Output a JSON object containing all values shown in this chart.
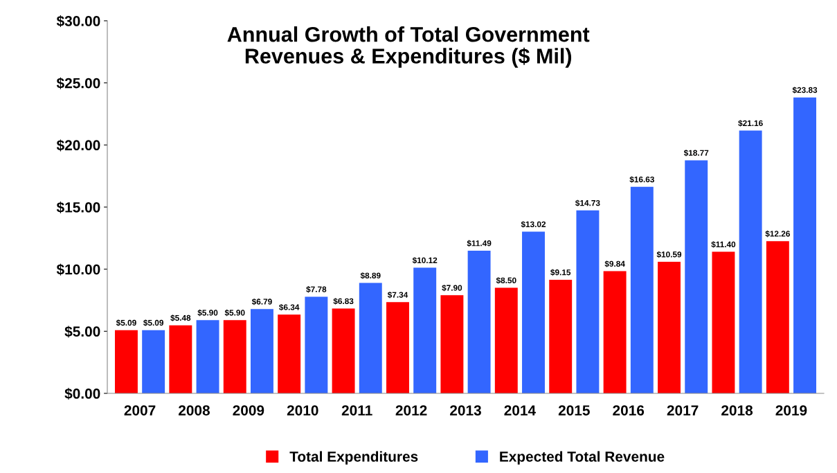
{
  "chart_data": {
    "type": "bar",
    "title": "Annual Growth of Total Government\nRevenues & Expenditures ($ Mil)",
    "categories": [
      "2007",
      "2008",
      "2009",
      "2010",
      "2011",
      "2012",
      "2013",
      "2014",
      "2015",
      "2016",
      "2017",
      "2018",
      "2019"
    ],
    "series": [
      {
        "name": "Total Expenditures",
        "color": "#ff0000",
        "values": [
          5.09,
          5.48,
          5.9,
          6.34,
          6.83,
          7.34,
          7.9,
          8.5,
          9.15,
          9.84,
          10.59,
          11.4,
          12.26
        ],
        "value_labels": [
          "$5.09",
          "$5.48",
          "$5.90",
          "$6.34",
          "$6.83",
          "$7.34",
          "$7.90",
          "$8.50",
          "$9.15",
          "$9.84",
          "$10.59",
          "$11.40",
          "$12.26"
        ]
      },
      {
        "name": "Expected Total Revenue",
        "color": "#3366ff",
        "values": [
          5.09,
          5.9,
          6.79,
          7.78,
          8.89,
          10.12,
          11.49,
          13.02,
          14.73,
          16.63,
          18.77,
          21.16,
          23.83
        ],
        "value_labels": [
          "$5.09",
          "$5.90",
          "$6.79",
          "$7.78",
          "$8.89",
          "$10.12",
          "$11.49",
          "$13.02",
          "$14.73",
          "$16.63",
          "$18.77",
          "$21.16",
          "$23.83"
        ]
      }
    ],
    "ylim": [
      0,
      30
    ],
    "yticks": [
      {
        "value": 0,
        "label": "$0.00"
      },
      {
        "value": 5,
        "label": "$5.00"
      },
      {
        "value": 10,
        "label": "$10.00"
      },
      {
        "value": 15,
        "label": "$15.00"
      },
      {
        "value": 20,
        "label": "$20.00"
      },
      {
        "value": 25,
        "label": "$25.00"
      },
      {
        "value": 30,
        "label": "$30.00"
      }
    ],
    "grid": false,
    "legend": "bottom"
  }
}
